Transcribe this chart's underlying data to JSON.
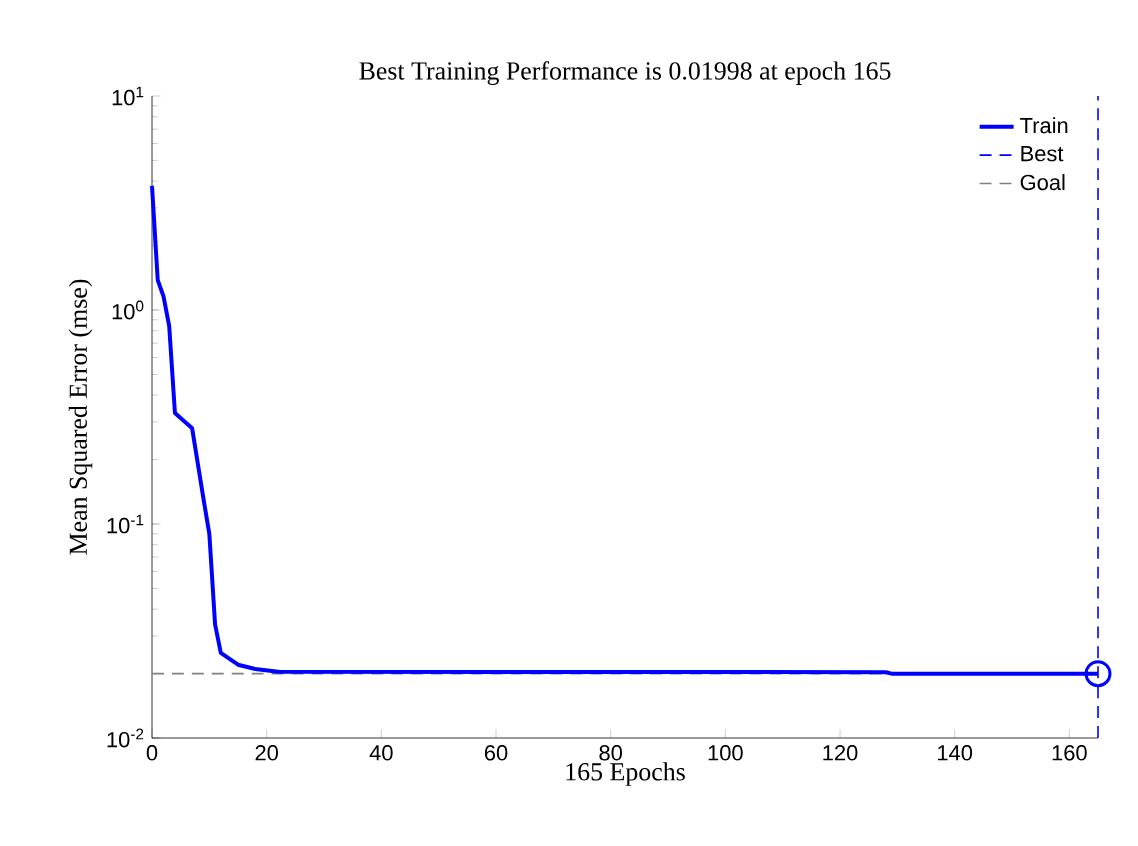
{
  "chart_data": {
    "type": "line",
    "title": "Best Training Performance is 0.01998 at epoch 165",
    "xlabel": "165 Epochs",
    "ylabel": "Mean Squared Error  (mse)",
    "series": [
      {
        "name": "Train",
        "color": "#0000ff",
        "x": [
          0,
          1,
          2,
          3,
          4,
          7,
          9,
          10,
          11,
          12,
          15,
          18,
          22,
          128,
          129,
          165
        ],
        "values": [
          3.8,
          1.38,
          1.16,
          0.84,
          0.33,
          0.28,
          0.13,
          0.09,
          0.034,
          0.025,
          0.022,
          0.021,
          0.0204,
          0.0203,
          0.01998,
          0.01998
        ]
      },
      {
        "type": "scatter",
        "color": "#0000ff",
        "marker": "circle",
        "x": [
          165
        ],
        "values": [
          0.01998
        ]
      }
    ],
    "xlim": [
      0,
      165
    ],
    "ylim": [
      0.01,
      10
    ],
    "xticks": [
      0,
      20,
      40,
      60,
      80,
      100,
      120,
      140,
      160
    ],
    "yticks": [
      {
        "value": 0.01,
        "label": "10$^{-2}$"
      },
      {
        "value": 0.1,
        "label": "10$^{-1}$"
      },
      {
        "value": 1,
        "label": "10$^{0}$"
      },
      {
        "value": 10,
        "label": "10$^{1}$"
      }
    ],
    "log": "y",
    "ref_lines": [
      {
        "axis": "x",
        "value": 165,
        "label": "Best",
        "color": "#0000ff",
        "line_style": "dashed"
      },
      {
        "axis": "y",
        "value": 0.02,
        "label": "Goal",
        "color": "#808080",
        "line_style": "dashed"
      }
    ],
    "legend": "top right"
  }
}
